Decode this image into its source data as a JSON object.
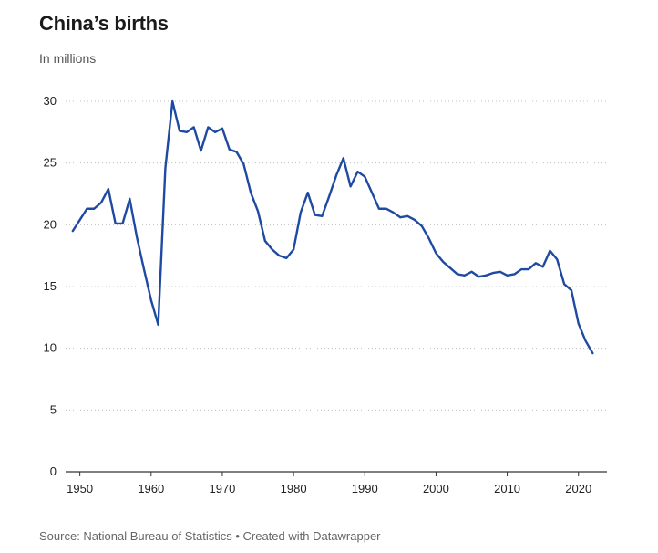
{
  "title": "China’s births",
  "subtitle": "In millions",
  "source_label": "Source: National Bureau of Statistics • Created with Datawrapper",
  "chart_data": {
    "type": "line",
    "title": "China’s births",
    "subtitle": "In millions",
    "xlabel": "",
    "ylabel": "",
    "xlim": [
      1948,
      2024
    ],
    "ylim": [
      0,
      30
    ],
    "x_ticks": [
      1950,
      1960,
      1970,
      1980,
      1990,
      2000,
      2010,
      2020
    ],
    "y_ticks": [
      0,
      5,
      10,
      15,
      20,
      25,
      30
    ],
    "grid": true,
    "legend": "none",
    "series": [
      {
        "color": "#1f4aa2",
        "x": [
          1949,
          1950,
          1951,
          1952,
          1953,
          1954,
          1955,
          1956,
          1957,
          1958,
          1959,
          1960,
          1961,
          1962,
          1963,
          1964,
          1965,
          1966,
          1967,
          1968,
          1969,
          1970,
          1971,
          1972,
          1973,
          1974,
          1975,
          1976,
          1977,
          1978,
          1979,
          1980,
          1981,
          1982,
          1983,
          1984,
          1985,
          1986,
          1987,
          1988,
          1989,
          1990,
          1991,
          1992,
          1993,
          1994,
          1995,
          1996,
          1997,
          1998,
          1999,
          2000,
          2001,
          2002,
          2003,
          2004,
          2005,
          2006,
          2007,
          2008,
          2009,
          2010,
          2011,
          2012,
          2013,
          2014,
          2015,
          2016,
          2017,
          2018,
          2019,
          2020,
          2021,
          2022
        ],
        "y": [
          19.5,
          20.4,
          21.3,
          21.3,
          21.8,
          22.9,
          20.1,
          20.1,
          22.1,
          19.0,
          16.4,
          13.9,
          11.9,
          24.6,
          30.0,
          27.6,
          27.5,
          27.9,
          26.0,
          27.9,
          27.5,
          27.8,
          26.1,
          25.9,
          24.9,
          22.6,
          21.1,
          18.7,
          18.0,
          17.5,
          17.3,
          18.0,
          21.0,
          22.6,
          20.8,
          20.7,
          22.3,
          24.0,
          25.4,
          23.1,
          24.3,
          23.9,
          22.6,
          21.3,
          21.3,
          21.0,
          20.6,
          20.7,
          20.4,
          19.9,
          18.9,
          17.7,
          17.0,
          16.5,
          16.0,
          15.9,
          16.2,
          15.8,
          15.9,
          16.1,
          16.2,
          15.9,
          16.0,
          16.4,
          16.4,
          16.9,
          16.6,
          17.9,
          17.2,
          15.2,
          14.7,
          12.0,
          10.6,
          9.6
        ]
      }
    ]
  }
}
